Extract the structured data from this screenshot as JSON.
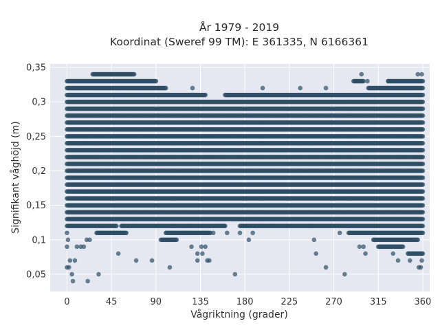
{
  "chart_data": {
    "type": "scatter",
    "title_line1": "År 1979 - 2019",
    "title_line2": "Koordinat (Sweref 99 TM): E 361335, N 6166361",
    "xlabel": "Vågriktning (grader)",
    "ylabel": "Signifikant våghöjd (m)",
    "xlim": [
      -17,
      367
    ],
    "ylim": [
      0.025,
      0.355
    ],
    "x_ticks": [
      0,
      45,
      90,
      135,
      180,
      225,
      270,
      315,
      360
    ],
    "x_tick_labels": [
      "0",
      "45",
      "90",
      "135",
      "180",
      "225",
      "270",
      "315",
      "360"
    ],
    "y_ticks": [
      0.05,
      0.1,
      0.15,
      0.2,
      0.25,
      0.3,
      0.35
    ],
    "y_tick_labels": [
      "0,05",
      "0,1",
      "0,15",
      "0,2",
      "0,25",
      "0,3",
      "0,35"
    ],
    "grid": true,
    "bands": [
      {
        "y": 0.34,
        "segments": [
          [
            26,
            45
          ],
          [
            45,
            68
          ]
        ]
      },
      {
        "y": 0.33,
        "segments": [
          [
            0,
            90
          ],
          [
            290,
            300
          ],
          [
            325,
            360
          ]
        ]
      },
      {
        "y": 0.32,
        "segments": [
          [
            0,
            100
          ],
          [
            305,
            360
          ]
        ]
      },
      {
        "y": 0.31,
        "segments": [
          [
            0,
            140
          ],
          [
            160,
            360
          ]
        ]
      },
      {
        "y": 0.3,
        "segments": [
          [
            0,
            360
          ]
        ]
      },
      {
        "y": 0.29,
        "segments": [
          [
            0,
            360
          ]
        ]
      },
      {
        "y": 0.28,
        "segments": [
          [
            0,
            360
          ]
        ]
      },
      {
        "y": 0.27,
        "segments": [
          [
            0,
            360
          ]
        ]
      },
      {
        "y": 0.26,
        "segments": [
          [
            0,
            360
          ]
        ]
      },
      {
        "y": 0.25,
        "segments": [
          [
            0,
            360
          ]
        ]
      },
      {
        "y": 0.24,
        "segments": [
          [
            0,
            360
          ]
        ]
      },
      {
        "y": 0.23,
        "segments": [
          [
            0,
            360
          ]
        ]
      },
      {
        "y": 0.22,
        "segments": [
          [
            0,
            360
          ]
        ]
      },
      {
        "y": 0.21,
        "segments": [
          [
            0,
            360
          ]
        ]
      },
      {
        "y": 0.2,
        "segments": [
          [
            0,
            360
          ]
        ]
      },
      {
        "y": 0.19,
        "segments": [
          [
            0,
            360
          ]
        ]
      },
      {
        "y": 0.18,
        "segments": [
          [
            0,
            360
          ]
        ]
      },
      {
        "y": 0.17,
        "segments": [
          [
            0,
            360
          ]
        ]
      },
      {
        "y": 0.16,
        "segments": [
          [
            0,
            360
          ]
        ]
      },
      {
        "y": 0.15,
        "segments": [
          [
            0,
            360
          ]
        ]
      },
      {
        "y": 0.14,
        "segments": [
          [
            0,
            360
          ]
        ]
      },
      {
        "y": 0.13,
        "segments": [
          [
            0,
            360
          ]
        ]
      },
      {
        "y": 0.12,
        "segments": [
          [
            0,
            50
          ],
          [
            55,
            160
          ],
          [
            175,
            360
          ]
        ]
      },
      {
        "y": 0.11,
        "segments": [
          [
            30,
            60
          ],
          [
            100,
            145
          ],
          [
            285,
            360
          ]
        ]
      },
      {
        "y": 0.1,
        "segments": [
          [
            95,
            110
          ],
          [
            310,
            355
          ]
        ]
      },
      {
        "y": 0.09,
        "segments": [
          [
            315,
            340
          ]
        ]
      },
      {
        "y": 0.08,
        "segments": [
          [
            345,
            360
          ]
        ]
      }
    ],
    "points": [
      [
        0,
        0.06
      ],
      [
        0,
        0.09
      ],
      [
        2,
        0.06
      ],
      [
        3,
        0.07
      ],
      [
        5,
        0.05
      ],
      [
        6,
        0.04
      ],
      [
        8,
        0.07
      ],
      [
        10,
        0.09
      ],
      [
        14,
        0.09
      ],
      [
        17,
        0.09
      ],
      [
        20,
        0.1
      ],
      [
        21,
        0.04
      ],
      [
        23,
        0.1
      ],
      [
        32,
        0.05
      ],
      [
        37,
        0.11
      ],
      [
        48,
        0.11
      ],
      [
        52,
        0.08
      ],
      [
        57,
        0.12
      ],
      [
        66,
        0.12
      ],
      [
        70,
        0.07
      ],
      [
        86,
        0.07
      ],
      [
        92,
        0.12
      ],
      [
        104,
        0.06
      ],
      [
        107,
        0.12
      ],
      [
        111,
        0.1
      ],
      [
        118,
        0.11
      ],
      [
        122,
        0.12
      ],
      [
        126,
        0.09
      ],
      [
        127,
        0.32
      ],
      [
        132,
        0.08
      ],
      [
        132,
        0.07
      ],
      [
        136,
        0.09
      ],
      [
        137,
        0.08
      ],
      [
        140,
        0.09
      ],
      [
        142,
        0.07
      ],
      [
        144,
        0.07
      ],
      [
        148,
        0.11
      ],
      [
        150,
        0.13
      ],
      [
        159,
        0.12
      ],
      [
        162,
        0.11
      ],
      [
        164,
        0.31
      ],
      [
        168,
        0.13
      ],
      [
        170,
        0.05
      ],
      [
        175,
        0.11
      ],
      [
        180,
        0.12
      ],
      [
        184,
        0.1
      ],
      [
        188,
        0.11
      ],
      [
        194,
        0.12
      ],
      [
        198,
        0.32
      ],
      [
        210,
        0.12
      ],
      [
        222,
        0.12
      ],
      [
        236,
        0.32
      ],
      [
        247,
        0.12
      ],
      [
        250,
        0.1
      ],
      [
        252,
        0.08
      ],
      [
        262,
        0.32
      ],
      [
        262,
        0.06
      ],
      [
        276,
        0.11
      ],
      [
        281,
        0.05
      ],
      [
        296,
        0.09
      ],
      [
        298,
        0.34
      ],
      [
        300,
        0.09
      ],
      [
        302,
        0.08
      ],
      [
        304,
        0.33
      ],
      [
        325,
        0.33
      ],
      [
        330,
        0.08
      ],
      [
        335,
        0.07
      ],
      [
        347,
        0.07
      ],
      [
        355,
        0.34
      ],
      [
        359,
        0.34
      ],
      [
        356,
        0.06
      ],
      [
        358,
        0.06
      ],
      [
        359,
        0.07
      ],
      [
        0,
        0.11
      ],
      [
        1,
        0.1
      ]
    ]
  }
}
